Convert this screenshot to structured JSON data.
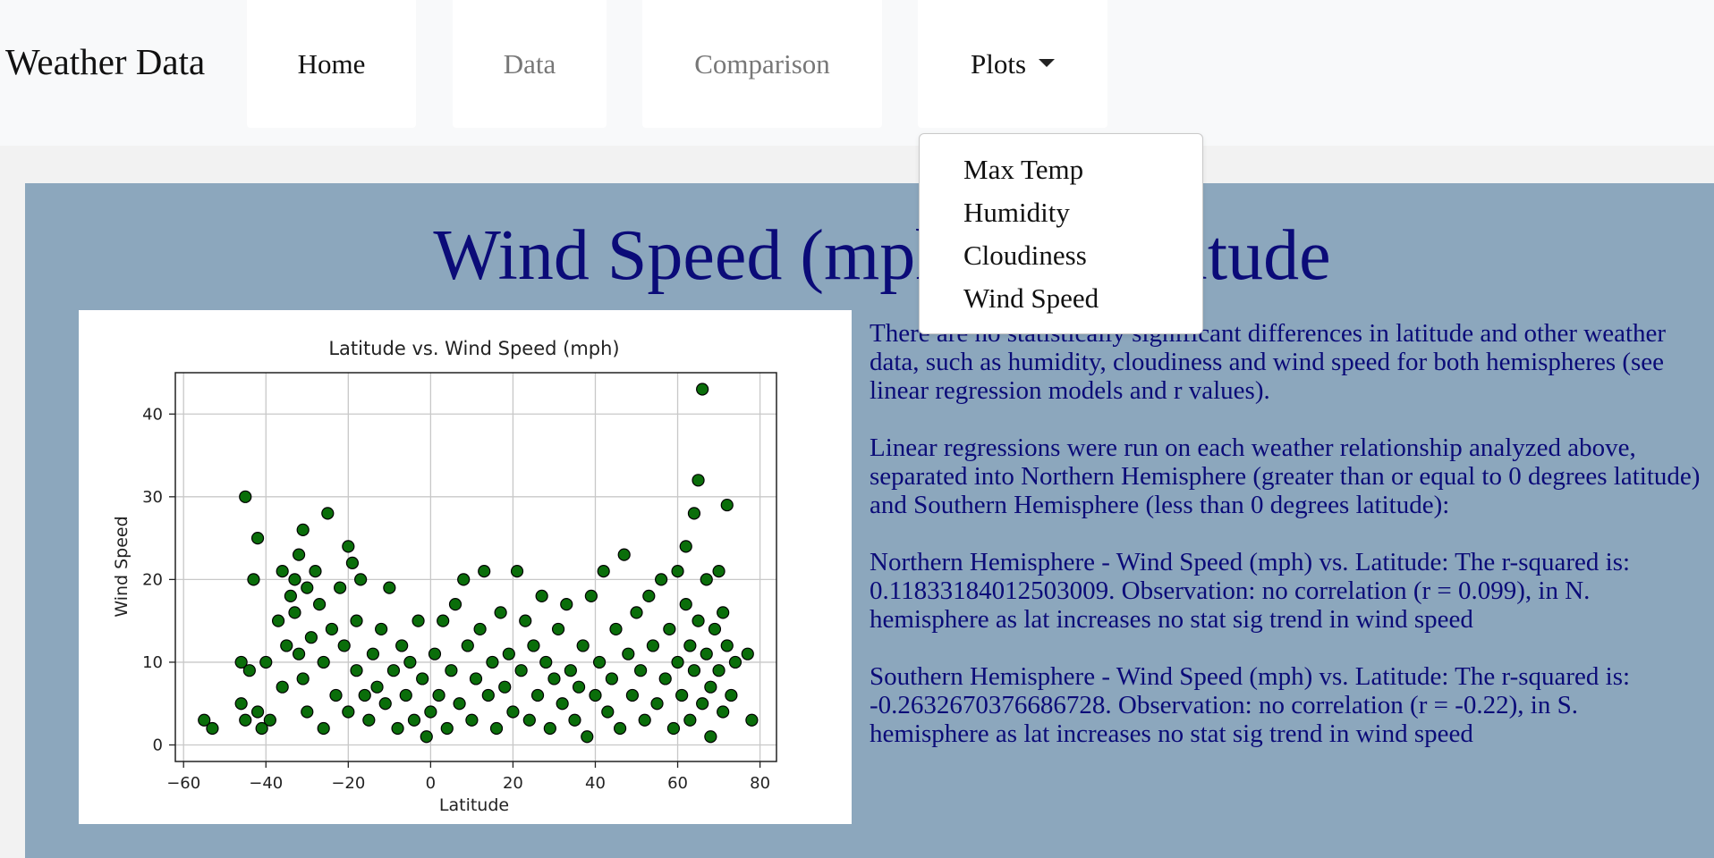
{
  "navbar": {
    "brand": "Weather Data",
    "home": "Home",
    "data": "Data",
    "comparison": "Comparison",
    "plots": "Plots"
  },
  "dropdown": {
    "items": [
      "Max Temp",
      "Humidity",
      "Cloudiness",
      "Wind Speed"
    ]
  },
  "page": {
    "headline": "Wind Speed (mph) vs. Latitude",
    "paragraphs": [
      "There are no statistically significant differences in latitude and other weather data, such as humidity, cloudiness and wind speed for both hemispheres (see linear regression models and r values).",
      "Linear regressions were run on each weather relationship analyzed above, separated into Northern Hemisphere (greater than or equal to 0 degrees latitude) and Southern Hemisphere (less than 0 degrees latitude):",
      "Northern Hemisphere - Wind Speed (mph) vs. Latitude: The r-squared is: 0.11833184012503009. Observation: no correlation (r = 0.099), in N. hemisphere as lat increases no stat sig trend in wind speed",
      "Southern Hemisphere - Wind Speed (mph) vs. Latitude: The r-squared is: -0.2632670376686728. Observation: no correlation (r = -0.22), in S. hemisphere as lat increases no stat sig trend in wind speed"
    ]
  },
  "colors": {
    "headline": "#0b0b78",
    "panel": "#8ca7bd",
    "marker_fill": "#0a6e0a",
    "marker_edge": "#000000"
  },
  "chart_data": {
    "type": "scatter",
    "title": "Latitude vs. Wind Speed (mph)",
    "xlabel": "Latitude",
    "ylabel": "Wind Speed",
    "xlim": [
      -62,
      84
    ],
    "ylim": [
      -2,
      45
    ],
    "xticks": [
      -60,
      -40,
      -20,
      0,
      20,
      40,
      60,
      80
    ],
    "yticks": [
      0,
      10,
      20,
      30,
      40
    ],
    "grid": true,
    "series": [
      {
        "points": [
          [
            -55,
            3
          ],
          [
            -53,
            2
          ],
          [
            -46,
            10
          ],
          [
            -46,
            5
          ],
          [
            -45,
            30
          ],
          [
            -45,
            3
          ],
          [
            -44,
            9
          ],
          [
            -43,
            20
          ],
          [
            -42,
            25
          ],
          [
            -42,
            4
          ],
          [
            -41,
            2
          ],
          [
            -40,
            10
          ],
          [
            -39,
            3
          ],
          [
            -37,
            15
          ],
          [
            -36,
            21
          ],
          [
            -36,
            7
          ],
          [
            -35,
            12
          ],
          [
            -34,
            18
          ],
          [
            -33,
            20
          ],
          [
            -33,
            16
          ],
          [
            -32,
            23
          ],
          [
            -32,
            11
          ],
          [
            -31,
            26
          ],
          [
            -31,
            8
          ],
          [
            -30,
            19
          ],
          [
            -30,
            4
          ],
          [
            -29,
            13
          ],
          [
            -28,
            21
          ],
          [
            -27,
            17
          ],
          [
            -26,
            10
          ],
          [
            -26,
            2
          ],
          [
            -25,
            28
          ],
          [
            -24,
            14
          ],
          [
            -23,
            6
          ],
          [
            -22,
            19
          ],
          [
            -21,
            12
          ],
          [
            -20,
            24
          ],
          [
            -20,
            4
          ],
          [
            -19,
            22
          ],
          [
            -18,
            15
          ],
          [
            -18,
            9
          ],
          [
            -17,
            20
          ],
          [
            -16,
            6
          ],
          [
            -15,
            3
          ],
          [
            -14,
            11
          ],
          [
            -13,
            7
          ],
          [
            -12,
            14
          ],
          [
            -11,
            5
          ],
          [
            -10,
            19
          ],
          [
            -9,
            9
          ],
          [
            -8,
            2
          ],
          [
            -7,
            12
          ],
          [
            -6,
            6
          ],
          [
            -5,
            10
          ],
          [
            -4,
            3
          ],
          [
            -3,
            15
          ],
          [
            -2,
            8
          ],
          [
            -1,
            1
          ],
          [
            0,
            4
          ],
          [
            1,
            11
          ],
          [
            2,
            6
          ],
          [
            3,
            15
          ],
          [
            4,
            2
          ],
          [
            5,
            9
          ],
          [
            6,
            17
          ],
          [
            7,
            5
          ],
          [
            8,
            20
          ],
          [
            9,
            12
          ],
          [
            10,
            3
          ],
          [
            11,
            8
          ],
          [
            12,
            14
          ],
          [
            13,
            21
          ],
          [
            14,
            6
          ],
          [
            15,
            10
          ],
          [
            16,
            2
          ],
          [
            17,
            16
          ],
          [
            18,
            7
          ],
          [
            19,
            11
          ],
          [
            20,
            4
          ],
          [
            21,
            21
          ],
          [
            22,
            9
          ],
          [
            23,
            15
          ],
          [
            24,
            3
          ],
          [
            25,
            12
          ],
          [
            26,
            6
          ],
          [
            27,
            18
          ],
          [
            28,
            10
          ],
          [
            29,
            2
          ],
          [
            30,
            8
          ],
          [
            31,
            14
          ],
          [
            32,
            5
          ],
          [
            33,
            17
          ],
          [
            34,
            9
          ],
          [
            35,
            3
          ],
          [
            36,
            7
          ],
          [
            37,
            12
          ],
          [
            38,
            1
          ],
          [
            39,
            18
          ],
          [
            40,
            6
          ],
          [
            41,
            10
          ],
          [
            42,
            21
          ],
          [
            43,
            4
          ],
          [
            44,
            8
          ],
          [
            45,
            14
          ],
          [
            46,
            2
          ],
          [
            47,
            23
          ],
          [
            48,
            11
          ],
          [
            49,
            6
          ],
          [
            50,
            16
          ],
          [
            51,
            9
          ],
          [
            52,
            3
          ],
          [
            53,
            18
          ],
          [
            54,
            12
          ],
          [
            55,
            5
          ],
          [
            56,
            20
          ],
          [
            57,
            8
          ],
          [
            58,
            14
          ],
          [
            59,
            2
          ],
          [
            60,
            21
          ],
          [
            60,
            10
          ],
          [
            61,
            6
          ],
          [
            62,
            17
          ],
          [
            62,
            24
          ],
          [
            63,
            12
          ],
          [
            63,
            3
          ],
          [
            64,
            28
          ],
          [
            64,
            9
          ],
          [
            65,
            32
          ],
          [
            65,
            15
          ],
          [
            66,
            43
          ],
          [
            66,
            5
          ],
          [
            67,
            20
          ],
          [
            67,
            11
          ],
          [
            68,
            7
          ],
          [
            68,
            1
          ],
          [
            69,
            14
          ],
          [
            70,
            21
          ],
          [
            70,
            9
          ],
          [
            71,
            16
          ],
          [
            71,
            4
          ],
          [
            72,
            29
          ],
          [
            72,
            12
          ],
          [
            73,
            6
          ],
          [
            74,
            10
          ],
          [
            77,
            11
          ],
          [
            78,
            3
          ]
        ]
      }
    ]
  }
}
